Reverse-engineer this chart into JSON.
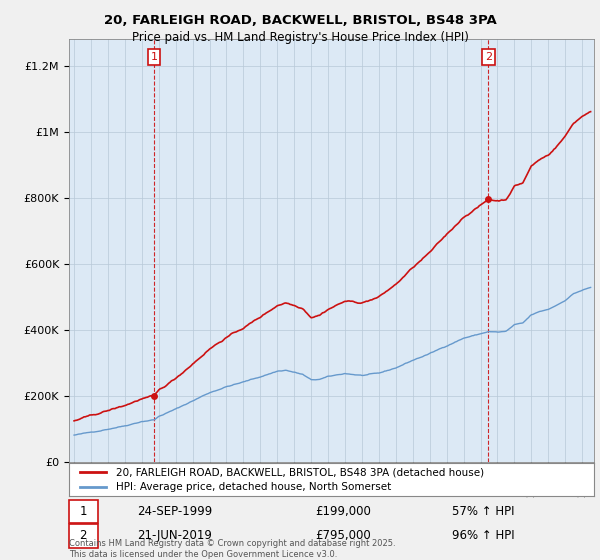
{
  "title_line1": "20, FARLEIGH ROAD, BACKWELL, BRISTOL, BS48 3PA",
  "title_line2": "Price paid vs. HM Land Registry's House Price Index (HPI)",
  "background_color": "#f0f0f0",
  "plot_bg_color": "#dce9f5",
  "hpi_color": "#6699cc",
  "price_color": "#cc1111",
  "sale1_year": 1999.73,
  "sale1_price": 199000,
  "sale2_year": 2019.47,
  "sale2_price": 795000,
  "sale1_date": "24-SEP-1999",
  "sale2_date": "21-JUN-2019",
  "sale1_hpi_pct": "57% ↑ HPI",
  "sale2_hpi_pct": "96% ↑ HPI",
  "legend_label1": "20, FARLEIGH ROAD, BACKWELL, BRISTOL, BS48 3PA (detached house)",
  "legend_label2": "HPI: Average price, detached house, North Somerset",
  "footnote": "Contains HM Land Registry data © Crown copyright and database right 2025.\nThis data is licensed under the Open Government Licence v3.0.",
  "ylabel_vals": [
    0,
    200000,
    400000,
    600000,
    800000,
    1000000,
    1200000
  ],
  "ylabel_labels": [
    "£0",
    "£200K",
    "£400K",
    "£600K",
    "£800K",
    "£1M",
    "£1.2M"
  ],
  "xlim_start": 1994.7,
  "xlim_end": 2025.7,
  "ylim_top": 1280000,
  "ylim_bottom": 0
}
